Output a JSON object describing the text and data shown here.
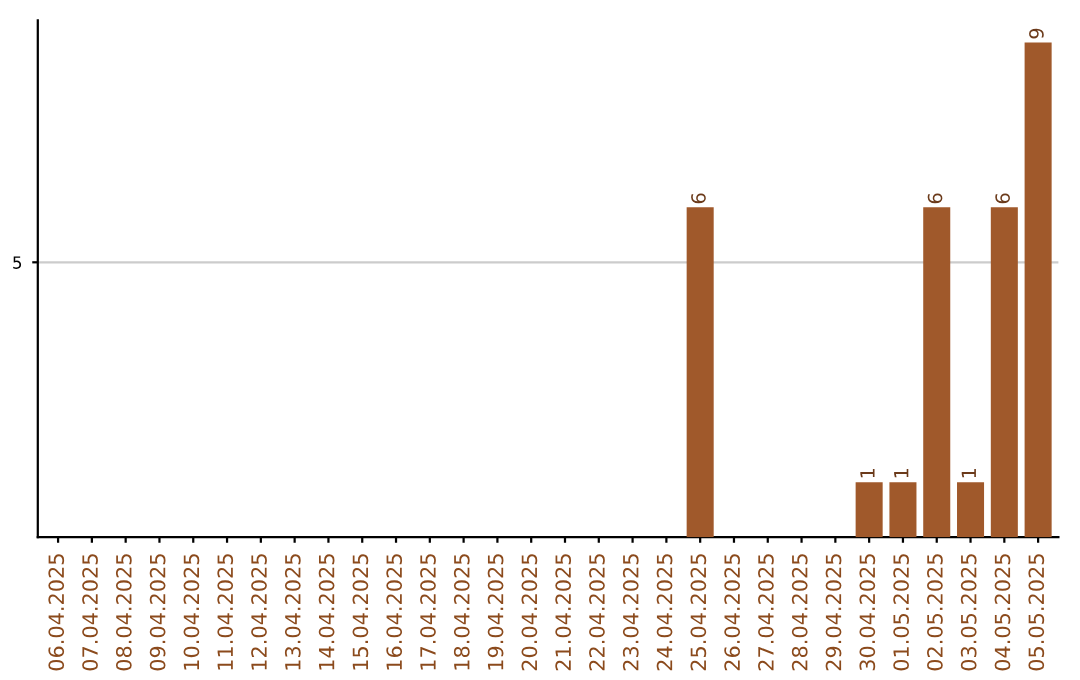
{
  "chart_data": {
    "type": "bar",
    "categories": [
      "06.04.2025",
      "07.04.2025",
      "08.04.2025",
      "09.04.2025",
      "10.04.2025",
      "11.04.2025",
      "12.04.2025",
      "13.04.2025",
      "14.04.2025",
      "15.04.2025",
      "16.04.2025",
      "17.04.2025",
      "18.04.2025",
      "19.04.2025",
      "20.04.2025",
      "21.04.2025",
      "22.04.2025",
      "23.04.2025",
      "24.04.2025",
      "25.04.2025",
      "26.04.2025",
      "27.04.2025",
      "28.04.2025",
      "29.04.2025",
      "30.04.2025",
      "01.05.2025",
      "02.05.2025",
      "03.05.2025",
      "04.05.2025",
      "05.05.2025"
    ],
    "values": [
      null,
      null,
      null,
      null,
      null,
      null,
      null,
      null,
      null,
      null,
      null,
      null,
      null,
      null,
      null,
      null,
      null,
      null,
      null,
      6,
      null,
      null,
      null,
      null,
      1,
      1,
      6,
      1,
      6,
      9
    ],
    "value_labels": [
      null,
      null,
      null,
      null,
      null,
      null,
      null,
      null,
      null,
      null,
      null,
      null,
      null,
      null,
      null,
      null,
      null,
      null,
      null,
      "6",
      null,
      null,
      null,
      null,
      "1",
      "1",
      "6",
      "1",
      "6",
      "9"
    ],
    "color": "#a0592b",
    "ylim": [
      0,
      9.4
    ],
    "yticks": [
      5
    ],
    "grid": "y"
  }
}
